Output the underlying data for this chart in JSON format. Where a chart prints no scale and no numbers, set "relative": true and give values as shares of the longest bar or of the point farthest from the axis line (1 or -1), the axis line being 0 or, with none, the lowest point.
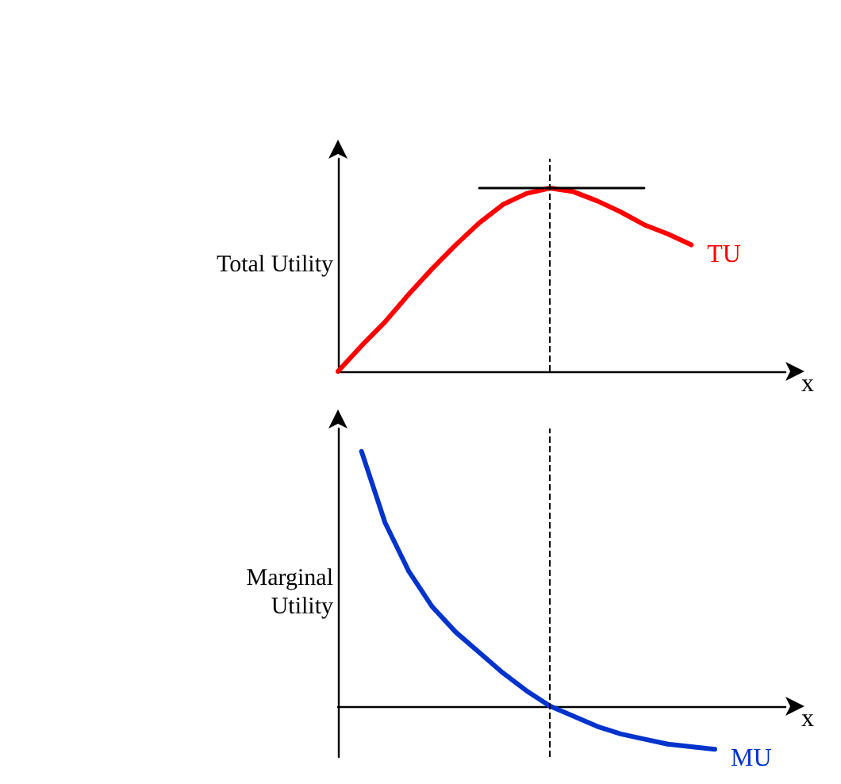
{
  "chart_data": [
    {
      "type": "line",
      "relative": true,
      "ylabel": "Total Utility",
      "xlabel": "x",
      "categories": [
        null,
        null,
        null,
        null,
        null,
        null,
        null,
        null,
        null,
        null,
        null,
        null,
        null,
        null,
        null,
        null,
        null,
        null,
        null,
        null
      ],
      "series": [
        {
          "name": "TU",
          "color": "#ff0000",
          "values": [
            0,
            0.14,
            0.27,
            0.42,
            0.56,
            0.69,
            0.81,
            0.91,
            0.97,
            1,
            0.98,
            0.93,
            0.87,
            0.8,
            0.75,
            0.69,
            null,
            null,
            null,
            null
          ]
        },
        {
          "color": "#000000",
          "values": [
            null,
            null,
            null,
            null,
            null,
            null,
            1,
            1,
            1,
            1,
            1,
            1,
            1,
            1,
            null,
            null,
            null,
            null,
            null,
            null
          ]
        }
      ],
      "legend": false,
      "grid": false,
      "marker": "none",
      "line_style": "solid"
    },
    {
      "type": "line",
      "relative": true,
      "ylabel": "Marginal\nUtility",
      "xlabel": "x",
      "categories": [
        null,
        null,
        null,
        null,
        null,
        null,
        null,
        null,
        null,
        null,
        null,
        null,
        null,
        null,
        null,
        null,
        null,
        null,
        null,
        null
      ],
      "series": [
        {
          "name": "MU",
          "color": "#0033cc",
          "values": [
            null,
            1,
            0.72,
            0.53,
            0.39,
            0.29,
            0.21,
            0.13,
            0.06,
            0,
            -0.04,
            -0.08,
            -0.11,
            -0.13,
            -0.15,
            -0.16,
            -0.17,
            null,
            null,
            null
          ]
        }
      ],
      "legend": false,
      "grid": false,
      "marker": "none",
      "line_style": "solid"
    }
  ]
}
